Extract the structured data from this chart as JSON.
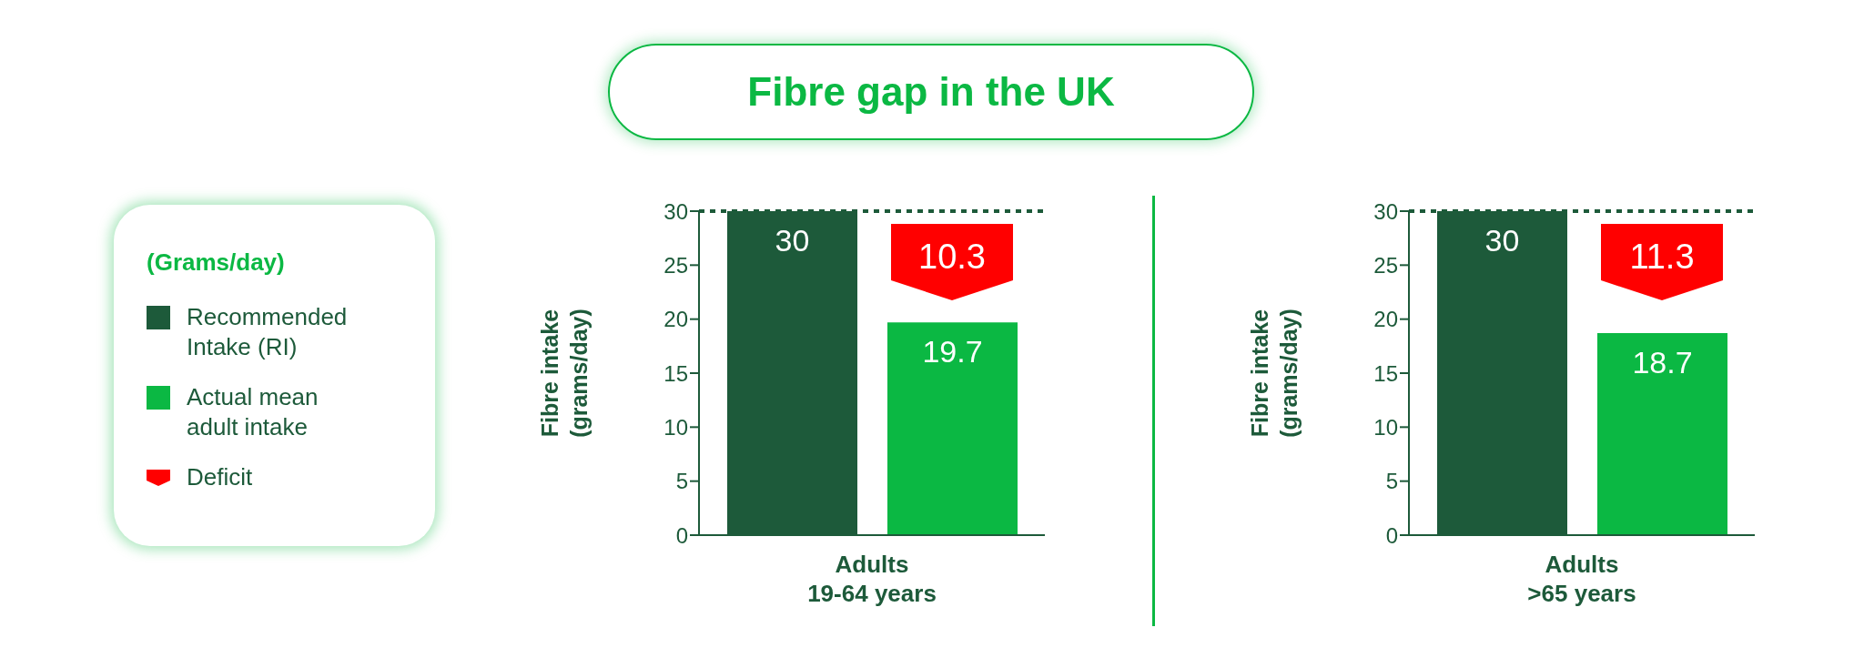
{
  "chart_data": [
    {
      "type": "bar",
      "title": "Fibre gap in the UK",
      "legend_title": "(Grams/day)",
      "legend": "left",
      "categories": [
        null
      ],
      "xlabel": "Adults\n19-64 years",
      "ylabel": "Fibre intake\n(grams/day)",
      "ylim": [
        0,
        30
      ],
      "yticks": [
        0,
        5,
        10,
        15,
        20,
        25,
        30
      ],
      "data_labels": true,
      "ref_lines": [
        {
          "axis": "y",
          "value": 30,
          "color": "#1d5a3a",
          "line_style": "dotted"
        }
      ],
      "annotations": [
        "10.3"
      ],
      "series": [
        {
          "name": "Recommended Intake (RI)",
          "color": "#1d5a3a",
          "values": [
            30
          ]
        },
        {
          "name": "Actual mean adult intake",
          "color": "#0bb843",
          "values": [
            19.7
          ]
        },
        {
          "name": "Deficit",
          "color": "#ff0000",
          "values": [
            null
          ]
        }
      ]
    },
    {
      "type": "bar",
      "legend": false,
      "categories": [
        null
      ],
      "xlabel": "Adults\n>65 years",
      "ylabel": "Fibre intake\n(grams/day)",
      "ylim": [
        0,
        30
      ],
      "yticks": [
        0,
        5,
        10,
        15,
        20,
        25,
        30
      ],
      "data_labels": true,
      "ref_lines": [
        {
          "axis": "y",
          "value": 30,
          "color": "#1d5a3a",
          "line_style": "dotted"
        }
      ],
      "annotations": [
        "11.3"
      ],
      "series": [
        {
          "color": "#1d5a3a",
          "values": [
            30
          ]
        },
        {
          "color": "#0bb843",
          "values": [
            18.7
          ]
        },
        {
          "color": "#ff0000",
          "values": [
            null
          ]
        }
      ]
    }
  ]
}
